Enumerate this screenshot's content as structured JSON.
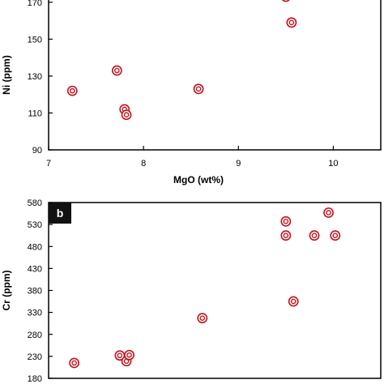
{
  "chart_data": [
    {
      "type": "scatter",
      "panel_label": "",
      "xlabel": "MgO (wt%)",
      "ylabel": "Ni (ppm)",
      "xlim": [
        7,
        10.5
      ],
      "ylim": [
        90,
        180
      ],
      "x_ticks": [
        "7",
        "8",
        "9",
        "10"
      ],
      "y_ticks": [
        "90",
        "110",
        "130",
        "150",
        "170"
      ],
      "marker_color": "#c0141c",
      "points": [
        {
          "x": 7.25,
          "y": 122
        },
        {
          "x": 7.72,
          "y": 133
        },
        {
          "x": 7.8,
          "y": 112
        },
        {
          "x": 7.82,
          "y": 109
        },
        {
          "x": 8.58,
          "y": 123
        },
        {
          "x": 9.5,
          "y": 173
        },
        {
          "x": 9.56,
          "y": 159
        }
      ]
    },
    {
      "type": "scatter",
      "panel_label": "b",
      "xlabel": "",
      "ylabel": "Cr (ppm)",
      "xlim": [
        7,
        10.5
      ],
      "ylim": [
        180,
        580
      ],
      "x_ticks": [],
      "y_ticks": [
        "180",
        "230",
        "280",
        "330",
        "380",
        "430",
        "480",
        "530",
        "580"
      ],
      "marker_color": "#c0141c",
      "points": [
        {
          "x": 7.27,
          "y": 215
        },
        {
          "x": 7.75,
          "y": 232
        },
        {
          "x": 7.82,
          "y": 219
        },
        {
          "x": 7.85,
          "y": 233
        },
        {
          "x": 8.62,
          "y": 317
        },
        {
          "x": 9.5,
          "y": 537
        },
        {
          "x": 9.5,
          "y": 505
        },
        {
          "x": 9.58,
          "y": 355
        },
        {
          "x": 9.8,
          "y": 505
        },
        {
          "x": 9.95,
          "y": 557
        },
        {
          "x": 10.02,
          "y": 505
        }
      ]
    }
  ]
}
